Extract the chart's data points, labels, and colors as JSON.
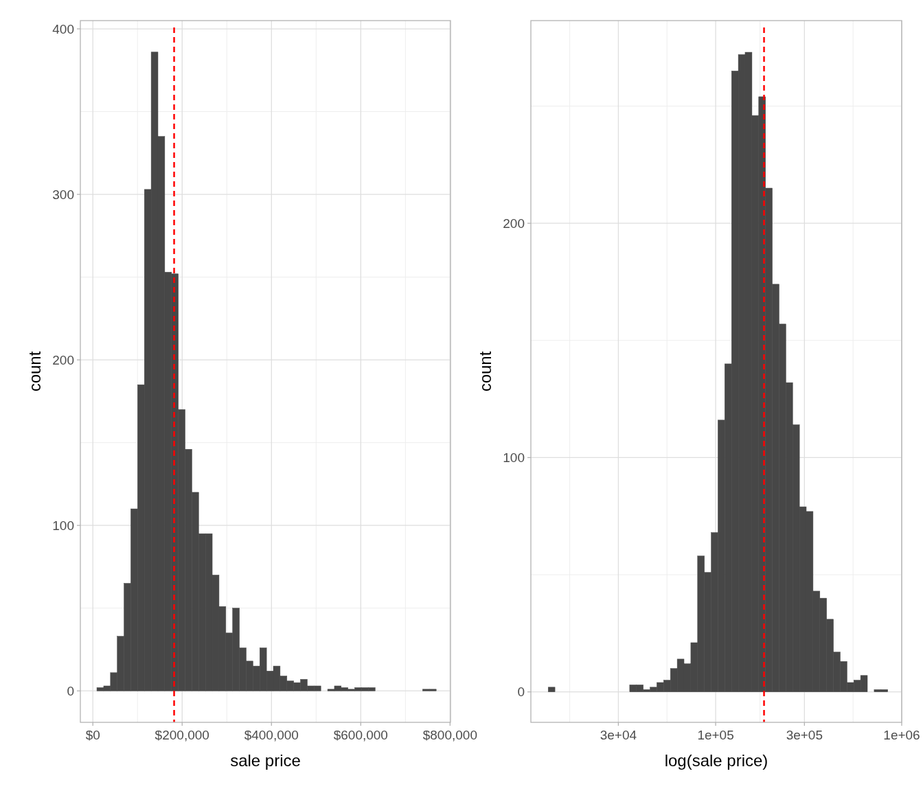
{
  "chart_data": [
    {
      "type": "histogram",
      "xlabel": "sale price",
      "ylabel": "count",
      "color": "#474747",
      "grid": true,
      "bins": [
        9000,
        24200,
        39400,
        54600,
        69800,
        85000,
        100200,
        115400,
        130600,
        145800,
        161000,
        176200,
        191400,
        206600,
        221800,
        237000,
        252200,
        267400,
        282600,
        297800,
        313000,
        328200,
        343400,
        358600,
        373800,
        389000,
        404200,
        419400,
        434600,
        449800,
        465000,
        480200,
        495400,
        510600,
        525800,
        541000,
        556200,
        571400,
        586600,
        601800,
        617000,
        632200,
        647400,
        662600,
        677800,
        693000,
        708200,
        723400,
        738600,
        753800,
        769000
      ],
      "values": [
        2,
        3,
        11,
        33,
        65,
        110,
        185,
        303,
        386,
        335,
        253,
        252,
        170,
        146,
        120,
        95,
        95,
        70,
        51,
        35,
        50,
        26,
        18,
        15,
        26,
        12,
        15,
        9,
        6,
        5,
        7,
        3,
        3,
        0,
        1,
        3,
        2,
        1,
        2,
        2,
        2,
        0,
        0,
        0,
        0,
        0,
        0,
        0,
        1,
        1
      ],
      "xlim": [
        -28000,
        801000
      ],
      "xticks": [
        {
          "value": 0,
          "label": "$0"
        },
        {
          "value": 200000,
          "label": "$200,000"
        },
        {
          "value": 400000,
          "label": "$400,000"
        },
        {
          "value": 600000,
          "label": "$600,000"
        },
        {
          "value": 800000,
          "label": "$800,000"
        }
      ],
      "ylim": [
        -19,
        405
      ],
      "yticks": [
        0,
        100,
        200,
        300,
        400
      ],
      "ref_lines": [
        {
          "axis": "x",
          "value": 182000,
          "color": "#ff0000",
          "line_style": "dashed"
        }
      ]
    },
    {
      "type": "histogram",
      "xlabel": "log(sale price)",
      "ylabel": "count",
      "color": "#474747",
      "grid": true,
      "log": "x",
      "bins": [
        12590,
        13690,
        14890,
        16200,
        17620,
        19170,
        20850,
        22670,
        24660,
        26820,
        29170,
        31730,
        34510,
        37540,
        40830,
        44420,
        48310,
        52540,
        57150,
        62160,
        67610,
        73540,
        79980,
        87000,
        94620,
        102900,
        111900,
        121800,
        132400,
        144000,
        156700,
        170400,
        185400,
        201600,
        219300,
        238500,
        259400,
        282200,
        306900,
        333800,
        363100,
        394900,
        429500,
        467200,
        508200,
        552700,
        601200,
        653900,
        711200,
        773600,
        841400
      ],
      "values": [
        2,
        0,
        0,
        0,
        0,
        0,
        0,
        0,
        0,
        0,
        0,
        0,
        3,
        3,
        1,
        2,
        4,
        5,
        10,
        14,
        12,
        21,
        58,
        51,
        68,
        116,
        140,
        265,
        272,
        273,
        246,
        254,
        215,
        174,
        157,
        132,
        114,
        79,
        77,
        43,
        40,
        31,
        17,
        13,
        4,
        5,
        7,
        0,
        1,
        1
      ],
      "xlim": [
        10160,
        1000000
      ],
      "xticks": [
        {
          "value": 30000,
          "label": "3e+04"
        },
        {
          "value": 100000,
          "label": "1e+05"
        },
        {
          "value": 300000,
          "label": "3e+05"
        },
        {
          "value": 1000000,
          "label": "1e+06"
        }
      ],
      "ylim": [
        -13,
        286.5
      ],
      "yticks": [
        0,
        100,
        200
      ],
      "ref_lines": [
        {
          "axis": "x",
          "value": 182000,
          "color": "#ff0000",
          "line_style": "dashed"
        }
      ]
    }
  ]
}
